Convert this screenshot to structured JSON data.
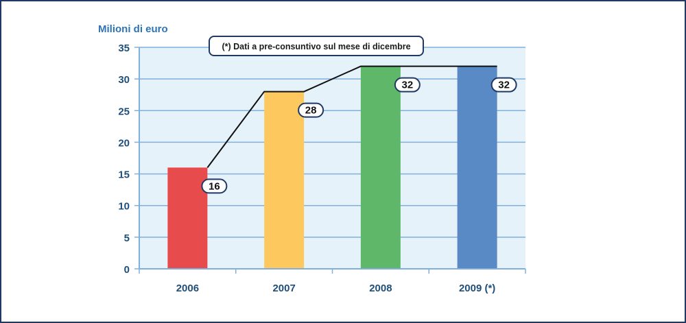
{
  "chart_data": {
    "type": "bar",
    "title": "",
    "ylabel": "Milioni di euro",
    "xlabel": "",
    "categories": [
      "2006",
      "2007",
      "2008",
      "2009 (*)"
    ],
    "values": [
      16,
      28,
      32,
      32
    ],
    "data_labels": [
      "16",
      "28",
      "32",
      "32"
    ],
    "ylim": [
      0,
      35
    ],
    "yticks": [
      0,
      5,
      10,
      15,
      20,
      25,
      30,
      35
    ],
    "grid": true,
    "annotation": "(*) Dati a pre-consuntivo sul mese di dicembre",
    "bar_colors": [
      "#e84b4b",
      "#fdc95e",
      "#5fb86a",
      "#5a8ac6"
    ],
    "trend_line": true
  },
  "colors": {
    "plot_background": "#e6f2fa",
    "grid": "#7fb0dc",
    "axis_text": "#1f4e79",
    "ylabel_text": "#2e74b5",
    "line": "#111111",
    "frame": "#1f3864",
    "label_box_border": "#1f3864"
  }
}
